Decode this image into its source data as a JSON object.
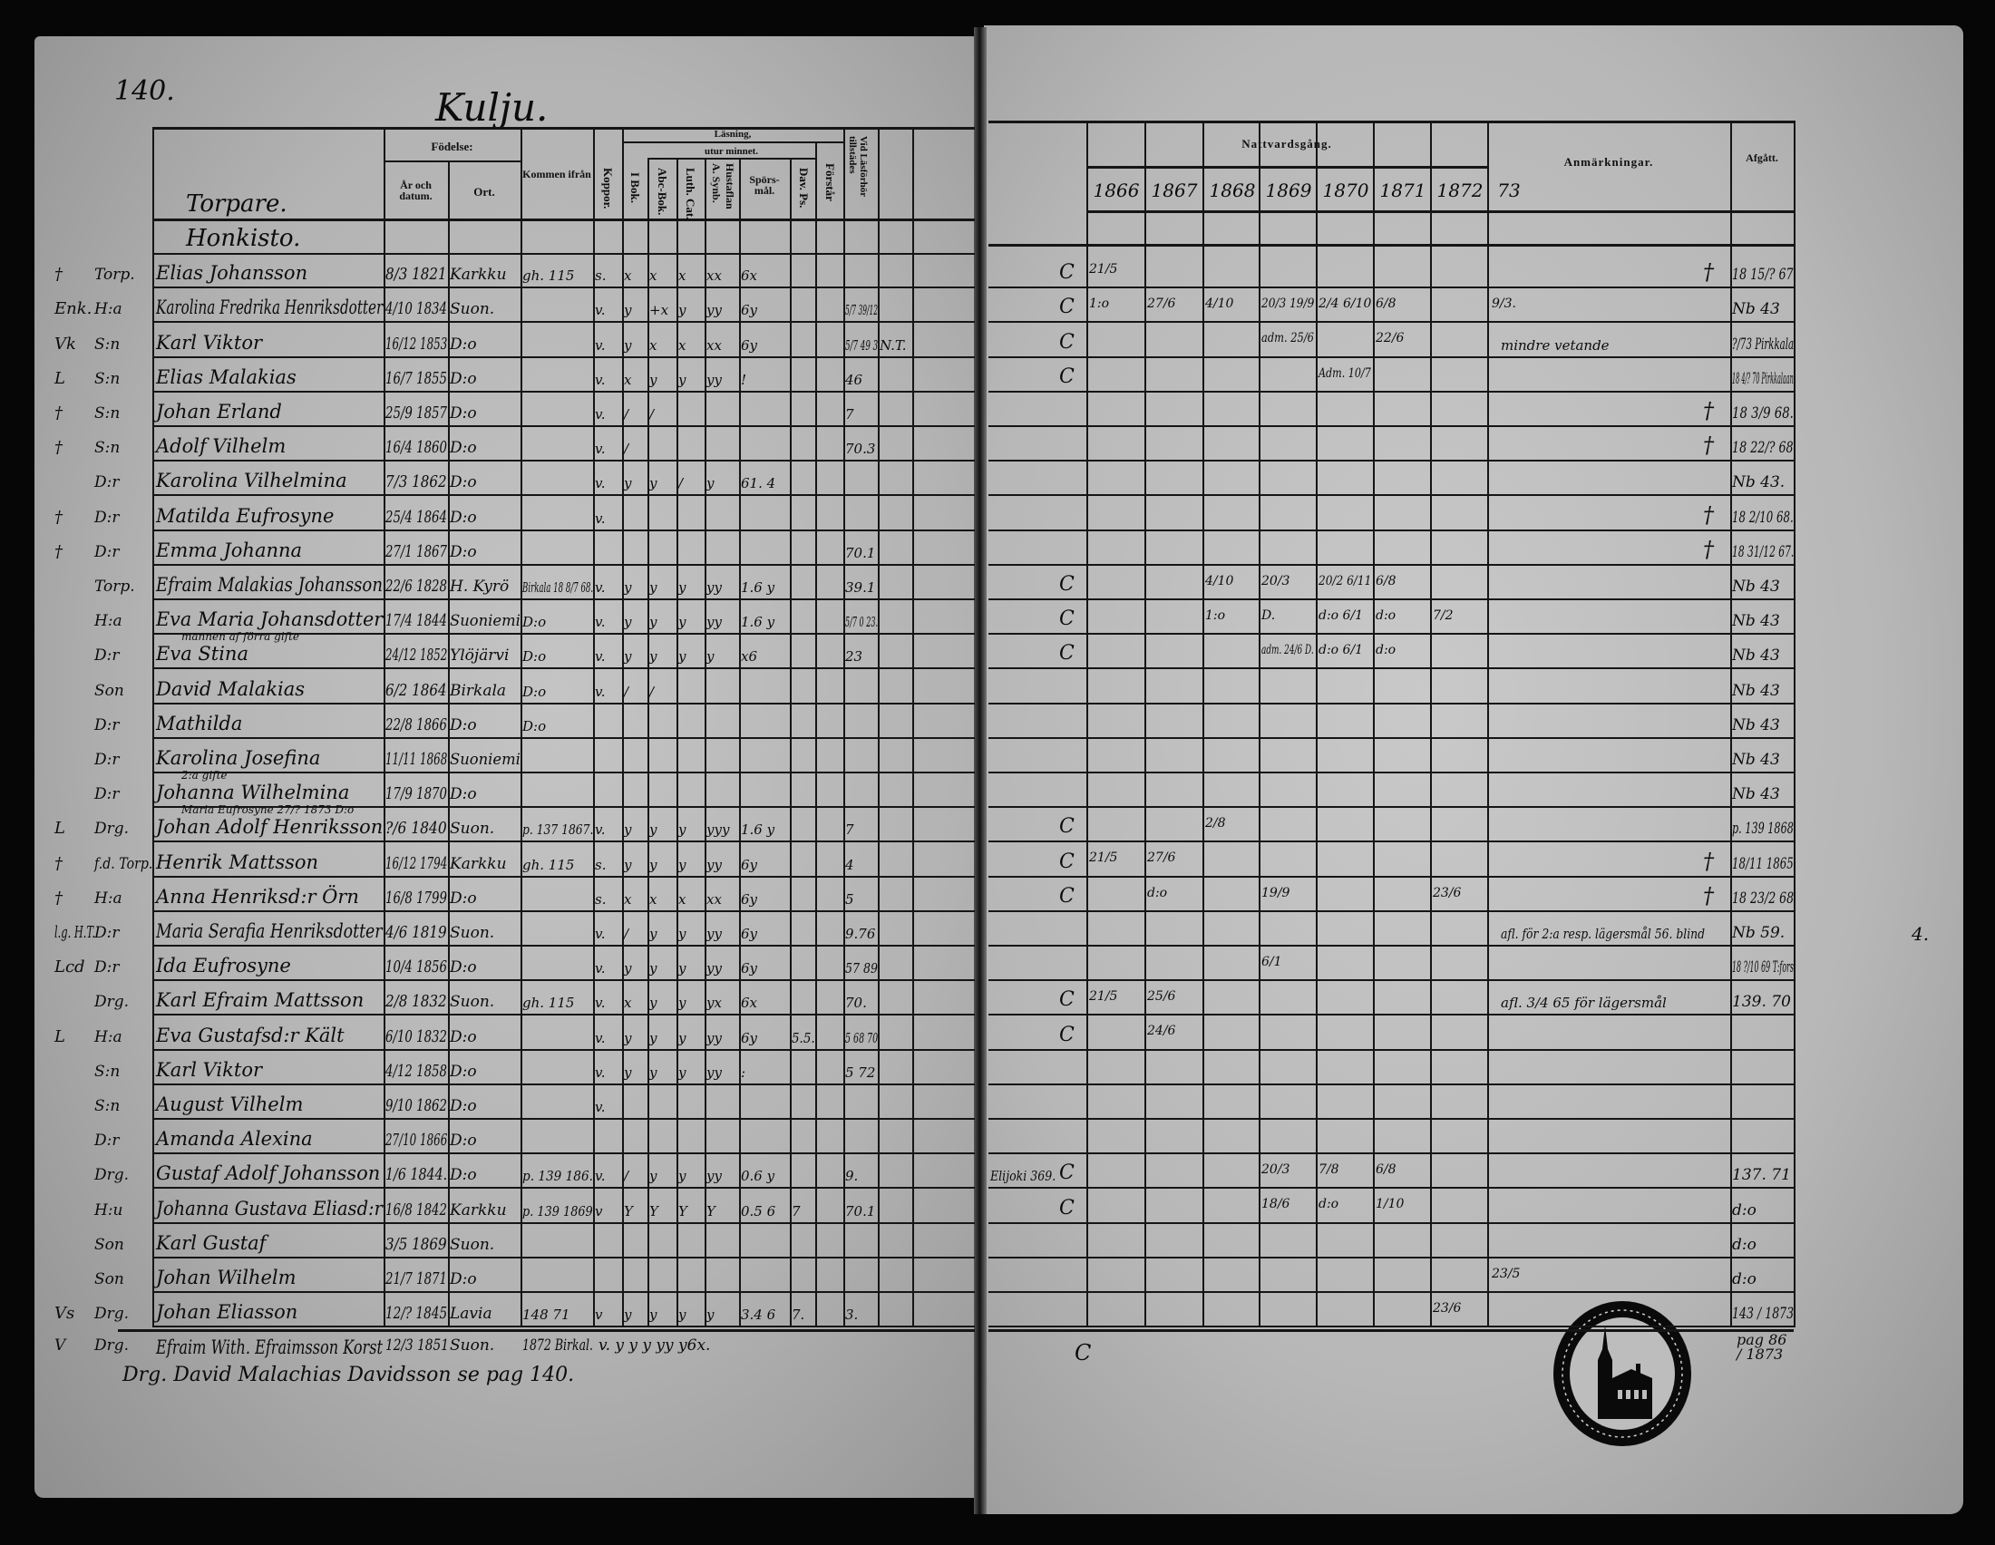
{
  "page": {
    "number": "140.",
    "village": "Kulju."
  },
  "sections": {
    "torpare": "Torpare.",
    "honkisto": "Honkisto."
  },
  "left_header": {
    "fodelse": "Födelse:",
    "ar_och_datum": "År och datum.",
    "ort": "Ort.",
    "kommen_ifran": "Kommen ifrån",
    "koppor": "Koppor.",
    "lasning": "Läsning,",
    "utur_minnet": "utur minnet.",
    "i_bok": "I Bok.",
    "abc_bok": "Abc-Bok.",
    "luth_cat": "Luth. Cat.",
    "hustaflan": "Hustaflan A. Synb.",
    "sporsmal": "Spörs- mål.",
    "dav_ps": "Dav. Ps.",
    "forstar": "Förstår",
    "vid_lasforhor": "Vid Läsförhör tillstädes"
  },
  "right_header": {
    "nattvardsgang": "Nattvardsgång.",
    "years": [
      "1866",
      "1867",
      "1868",
      "1869",
      "1870",
      "1871",
      "1872",
      "73"
    ],
    "anmarkningar": "Anmärkningar.",
    "afgatt": "Afgått."
  },
  "rows": [
    {
      "m": "†",
      "st": "Torp.",
      "name": "Elias Johansson",
      "birth": "8/3 1821",
      "place": "Karkku",
      "from": "gh. 115",
      "kop": "s.",
      "ibok": "x",
      "abc": "x",
      "luth": "x",
      "husf": "xx",
      "spors": "6x",
      "marker": "C",
      "nv": {
        "1866": "21/5"
      },
      "cross": "†",
      "afg": "18 15/? 67"
    },
    {
      "m": "Enk.",
      "st": "H:a",
      "name": "Karolina Fredrika Henriksdotter",
      "birth": "4/10 1834",
      "place": "Suon.",
      "kop": "v.",
      "ibok": "y",
      "abc": "+x",
      "luth": "y",
      "husf": "yy",
      "spors": "6y",
      "vid": "5/7 39/12",
      "marker": "C",
      "nv": {
        "1866": "1:o",
        "1867": "27/6",
        "1868": "4/10",
        "1869": "20/3 19/9",
        "1870": "2/4 6/10",
        "1871": "6/8",
        "73": "9/3."
      },
      "afg": "Nb 43"
    },
    {
      "m": "Vk",
      "st": "S:n",
      "name": "Karl Viktor",
      "birth": "16/12 1853",
      "place": "D:o",
      "kop": "v.",
      "ibok": "y",
      "abc": "x",
      "luth": "x",
      "husf": "xx",
      "spors": "6y",
      "vid": "5/7 49 3",
      "x1": "N.T.",
      "marker": "C",
      "nv": {
        "1869": "adm. 25/6",
        "1871": "22/6"
      },
      "rem": "mindre vetande",
      "afg": "?/73 Pirkkala"
    },
    {
      "m": "L",
      "st": "S:n",
      "name": "Elias Malakias",
      "birth": "16/7 1855",
      "place": "D:o",
      "kop": "v.",
      "ibok": "x",
      "abc": "y",
      "luth": "y",
      "husf": "yy",
      "spors": "!",
      "vid": "46",
      "marker": "C",
      "nv": {
        "1870": "Adm. 10/7"
      },
      "afg": "18 4/? 70 Pirkkalaan"
    },
    {
      "m": "†",
      "st": "S:n",
      "name": "Johan Erland",
      "birth": "25/9 1857",
      "place": "D:o",
      "kop": "v.",
      "ibok": "/",
      "abc": "/",
      "vid": "7",
      "cross": "†",
      "afg": "18 3/9 68."
    },
    {
      "m": "†",
      "st": "S:n",
      "name": "Adolf Vilhelm",
      "birth": "16/4 1860",
      "place": "D:o",
      "kop": "v.",
      "ibok": "/",
      "vid": "70.3",
      "cross": "†",
      "afg": "18 22/? 68"
    },
    {
      "st": "D:r",
      "name": "Karolina Vilhelmina",
      "birth": "7/3 1862",
      "place": "D:o",
      "kop": "v.",
      "ibok": "y",
      "abc": "y",
      "luth": "/",
      "husf": "y",
      "spors": "61. 4",
      "afg": "Nb 43."
    },
    {
      "m": "†",
      "st": "D:r",
      "name": "Matilda Eufrosyne",
      "birth": "25/4 1864",
      "place": "D:o",
      "kop": "v.",
      "cross": "†",
      "afg": "18 2/10 68."
    },
    {
      "m": "†",
      "st": "D:r",
      "name": "Emma Johanna",
      "birth": "27/1 1867",
      "place": "D:o",
      "vid": "70.1",
      "cross": "†",
      "afg": "18 31/12 67."
    },
    {
      "st": "Torp.",
      "name": "Efraim Malakias Johansson",
      "birth": "22/6 1828",
      "place": "H. Kyrö",
      "from": "Birkala 18 8/7 68.",
      "kop": "v.",
      "ibok": "y",
      "abc": "y",
      "luth": "y",
      "husf": "yy",
      "spors": "1.6 y",
      "vid": "39.1",
      "marker": "C",
      "nv": {
        "1868": "4/10",
        "1869": "20/3",
        "1870": "20/2 6/11",
        "1871": "6/8"
      },
      "afg": "Nb 43"
    },
    {
      "st": "H:a",
      "name": "Eva Maria Johansdotter",
      "note": "mannen af förra gifte",
      "birth": "17/4 1844",
      "place": "Suoniemi",
      "from": "D:o",
      "kop": "v.",
      "ibok": "y",
      "abc": "y",
      "luth": "y",
      "husf": "yy",
      "spors": "1.6 y",
      "vid": "5/7 0 23.",
      "marker": "C",
      "nv": {
        "1868": "1:o",
        "1869": "D.",
        "1870": "d:o 6/1",
        "1871": "d:o",
        "1872": "7/2"
      },
      "afg": "Nb 43"
    },
    {
      "st": "D:r",
      "name": "Eva Stina",
      "birth": "24/12 1852",
      "place": "Ylöjärvi",
      "from": "D:o",
      "kop": "v.",
      "ibok": "y",
      "abc": "y",
      "luth": "y",
      "husf": "y",
      "spors": "x6",
      "vid": "23",
      "marker": "C",
      "nv": {
        "1869": "adm. 24/6 D.",
        "1870": "d:o 6/1",
        "1871": "d:o"
      },
      "afg": "Nb 43"
    },
    {
      "st": "Son",
      "name": "David Malakias",
      "birth": "6/2 1864",
      "place": "Birkala",
      "from": "D:o",
      "kop": "v.",
      "ibok": "/",
      "abc": "/",
      "afg": "Nb 43"
    },
    {
      "st": "D:r",
      "name": "Mathilda",
      "birth": "22/8 1866",
      "place": "D:o",
      "from": "D:o",
      "afg": "Nb 43"
    },
    {
      "st": "D:r",
      "name": "Karolina Josefina",
      "birth": "11/11 1868",
      "place": "Suoniemi",
      "afg": "Nb 43"
    },
    {
      "st": "D:r",
      "name": "Johanna Wilhelmina",
      "note": "2:a gifte",
      "birth": "17/9 1870",
      "place": "D:o",
      "afg": "Nb 43"
    },
    {
      "m": "L",
      "st": "Drg.",
      "name": "Johan Adolf Henriksson",
      "note": "Maria Eufrosyne 27/? 1873 D:o",
      "birth": "?/6 1840",
      "place": "Suon.",
      "from": "p. 137 1867.",
      "kop": "v.",
      "ibok": "y",
      "abc": "y",
      "luth": "y",
      "husf": "yyy",
      "spors": "1.6 y",
      "vid": "7",
      "marker": "C",
      "nv": {
        "1868": "2/8"
      },
      "afg": "p. 139 1868"
    },
    {
      "m": "†",
      "st": "f.d. Torp.",
      "name": "Henrik Mattsson",
      "birth": "16/12 1794",
      "place": "Karkku",
      "from": "gh. 115",
      "kop": "s.",
      "ibok": "y",
      "abc": "y",
      "luth": "y",
      "husf": "yy",
      "spors": "6y",
      "vid": "4",
      "marker": "C",
      "nv": {
        "1866": "21/5",
        "1867": "27/6"
      },
      "cross": "†",
      "afg": "18/11 1865"
    },
    {
      "m": "†",
      "st": "H:a",
      "name": "Anna Henriksd:r Örn",
      "birth": "16/8 1799",
      "place": "D:o",
      "kop": "s.",
      "ibok": "x",
      "abc": "x",
      "luth": "x",
      "husf": "xx",
      "spors": "6y",
      "vid": "5",
      "marker": "C",
      "nv": {
        "1867": "d:o",
        "1869": "19/9",
        "1872": "23/6"
      },
      "cross": "†",
      "afg": "18 23/2 68"
    },
    {
      "m": "l.g. H.T.",
      "st": "D:r",
      "name": "Maria Serafia Henriksdotter",
      "birth": "4/6 1819",
      "place": "Suon.",
      "kop": "v.",
      "ibok": "/",
      "abc": "y",
      "luth": "y",
      "husf": "yy",
      "spors": "6y",
      "vid": "9.76",
      "rem": "afl. för 2:a resp. lägersmål 56. blind",
      "afg": "Nb 59."
    },
    {
      "m": "Lcd",
      "st": "D:r",
      "name": "Ida Eufrosyne",
      "birth": "10/4 1856",
      "place": "D:o",
      "kop": "v.",
      "ibok": "y",
      "abc": "y",
      "luth": "y",
      "husf": "yy",
      "spors": "6y",
      "vid": "57 89",
      "nv": {
        "1869": "6/1"
      },
      "afg": "18 ?/10 69 T:fors"
    },
    {
      "st": "Drg.",
      "name": "Karl Efraim Mattsson",
      "birth": "2/8 1832",
      "place": "Suon.",
      "from": "gh. 115",
      "kop": "v.",
      "ibok": "x",
      "abc": "y",
      "luth": "y",
      "husf": "yx",
      "spors": "6x",
      "vid": "70.",
      "marker": "C",
      "nv": {
        "1866": "21/5",
        "1867": "25/6"
      },
      "rem": "afl. 3/4 65 för lägersmål",
      "afg": "139. 70"
    },
    {
      "m": "L",
      "st": "H:a",
      "name": "Eva Gustafsd:r Kält",
      "birth": "6/10 1832",
      "place": "D:o",
      "kop": "v.",
      "ibok": "y",
      "abc": "y",
      "luth": "y",
      "husf": "yy",
      "spors": "6y",
      "dav": "5.5.",
      "vid": "5 68 70",
      "marker": "C",
      "nv": {
        "1867": "24/6"
      }
    },
    {
      "st": "S:n",
      "name": "Karl Viktor",
      "birth": "4/12 1858",
      "place": "D:o",
      "kop": "v.",
      "ibok": "y",
      "abc": "y",
      "luth": "y",
      "husf": "yy",
      "spors": ":",
      "vid": "5 72"
    },
    {
      "st": "S:n",
      "name": "August Vilhelm",
      "birth": "9/10 1862",
      "place": "D:o",
      "kop": "v."
    },
    {
      "st": "D:r",
      "name": "Amanda Alexina",
      "birth": "27/10 1866",
      "place": "D:o"
    },
    {
      "st": "Drg.",
      "name": "Gustaf Adolf Johansson",
      "birth": "1/6 1844.",
      "place": "D:o",
      "from": "p. 139 186.",
      "kop": "v.",
      "ibok": "/",
      "abc": "y",
      "luth": "y",
      "husf": "yy",
      "spors": "0.6 y",
      "vid": "9.",
      "x": "Elijoki 369.",
      "marker": "C",
      "nv": {
        "1869": "20/3",
        "1870": "7/8",
        "1871": "6/8"
      },
      "afg": "137. 71"
    },
    {
      "st": "H:u",
      "name": "Johanna Gustava Eliasd:r",
      "birth": "16/8 1842",
      "place": "Karkku",
      "from": "p. 139 1869",
      "kop": "v",
      "ibok": "Y",
      "abc": "Y",
      "luth": "Y",
      "husf": "Y",
      "spors": "0.5 6",
      "dav": "7",
      "vid": "70.1",
      "marker": "C",
      "nv": {
        "1869": "18/6",
        "1870": "d:o",
        "1871": "1/10"
      },
      "afg": "d:o"
    },
    {
      "st": "Son",
      "name": "Karl Gustaf",
      "birth": "3/5 1869",
      "place": "Suon.",
      "afg": "d:o"
    },
    {
      "st": "Son",
      "name": "Johan Wilhelm",
      "birth": "21/7 1871",
      "place": "D:o",
      "nv": {
        "73": "23/5"
      },
      "afg": "d:o"
    },
    {
      "m": "Vs",
      "st": "Drg.",
      "name": "Johan Eliasson",
      "birth": "12/? 1845",
      "place": "Lavia",
      "from": "148 71",
      "kop": "v",
      "ibok": "y",
      "abc": "y",
      "luth": "y",
      "husf": "y",
      "spors": "3.4 6",
      "dav": "7.",
      "vid": "3.",
      "nv": {
        "1872": "23/6"
      },
      "afg": "143 / 1873"
    }
  ],
  "footer": {
    "entry1": {
      "m": "V",
      "st": "Drg.",
      "name": "Efraim With. Efraimsson Korst",
      "birth": "12/3 1851",
      "place": "Suon.",
      "from": "1872 Birkal.",
      "marks": "v. y y y yy y6x."
    },
    "entry2": "Drg. David Malachias Davidsson se pag 140.",
    "marker": "C",
    "afgatt": "pag 86 / 1873"
  },
  "margin_note": "4.",
  "colors": {
    "paper": "#bdbdbd",
    "ink": "#0c0c0c",
    "background": "#060606"
  }
}
